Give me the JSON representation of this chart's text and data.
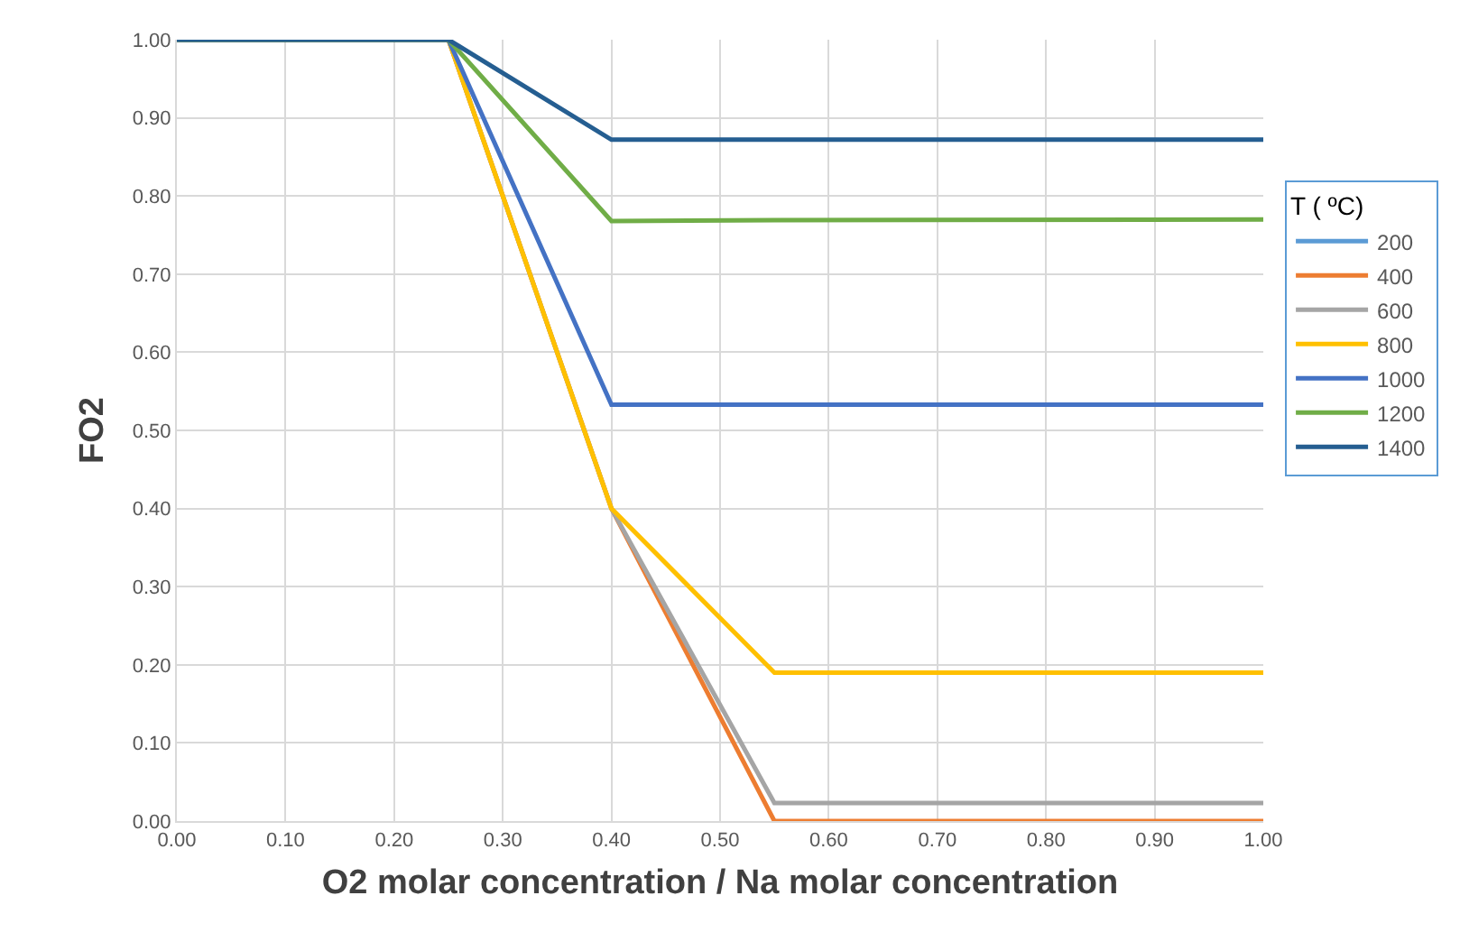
{
  "chart_data": {
    "type": "line",
    "xlabel": "O2 molar concentration / Na molar concentration",
    "ylabel": "FO2",
    "legend_title": "T ( ºC)",
    "legend": "right",
    "grid": true,
    "marker": "none",
    "line_style": "solid",
    "x": [
      0,
      0.25,
      0.4,
      0.55,
      1
    ],
    "xlim": [
      0,
      1
    ],
    "xticks": [
      {
        "value": 0,
        "label": "0.00"
      },
      {
        "value": 0.1,
        "label": "0.10"
      },
      {
        "value": 0.2,
        "label": "0.20"
      },
      {
        "value": 0.3,
        "label": "0.30"
      },
      {
        "value": 0.4,
        "label": "0.40"
      },
      {
        "value": 0.5,
        "label": "0.50"
      },
      {
        "value": 0.6,
        "label": "0.60"
      },
      {
        "value": 0.7,
        "label": "0.70"
      },
      {
        "value": 0.8,
        "label": "0.80"
      },
      {
        "value": 0.9,
        "label": "0.90"
      },
      {
        "value": 1,
        "label": "1.00"
      }
    ],
    "ylim": [
      0,
      1
    ],
    "yticks": [
      {
        "value": 0,
        "label": "0.00"
      },
      {
        "value": 0.1,
        "label": "0.10"
      },
      {
        "value": 0.2,
        "label": "0.20"
      },
      {
        "value": 0.3,
        "label": "0.30"
      },
      {
        "value": 0.4,
        "label": "0.40"
      },
      {
        "value": 0.5,
        "label": "0.50"
      },
      {
        "value": 0.6,
        "label": "0.60"
      },
      {
        "value": 0.7,
        "label": "0.70"
      },
      {
        "value": 0.8,
        "label": "0.80"
      },
      {
        "value": 0.9,
        "label": "0.90"
      },
      {
        "value": 1,
        "label": "1.00"
      }
    ],
    "series": [
      {
        "name": "200",
        "color": "#5b9bd5",
        "values": [
          null,
          null,
          null,
          null,
          null
        ]
      },
      {
        "name": "400",
        "color": "#ed7d31",
        "values": [
          1,
          1,
          0.4,
          0,
          0
        ]
      },
      {
        "name": "600",
        "color": "#a5a5a5",
        "values": [
          1,
          1,
          0.4,
          0.023,
          0.023
        ]
      },
      {
        "name": "800",
        "color": "#ffc000",
        "values": [
          1,
          1,
          0.4,
          0.19,
          0.19
        ]
      },
      {
        "name": "1000",
        "color": "#4472c4",
        "values": [
          1,
          1,
          0.533,
          0.533,
          0.533
        ]
      },
      {
        "name": "1200",
        "color": "#70ad47",
        "values": [
          1,
          1,
          0.768,
          0.769,
          0.77
        ]
      },
      {
        "name": "1400",
        "color": "#255e91",
        "values": [
          1,
          1,
          0.872,
          0.872,
          0.872
        ]
      }
    ]
  }
}
